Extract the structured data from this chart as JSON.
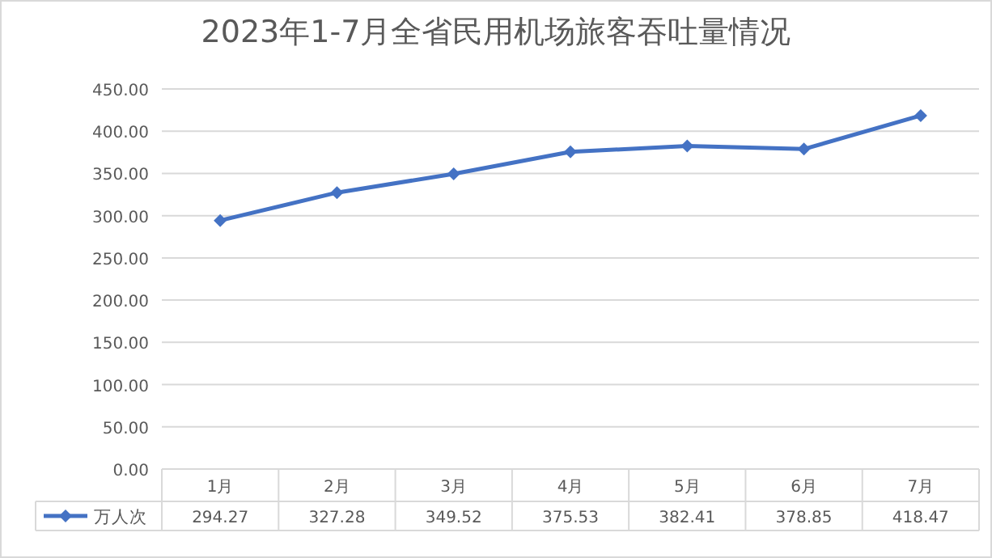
{
  "chart_data": {
    "type": "line",
    "title": "2023年1-7月全省民用机场旅客吞吐量情况",
    "categories": [
      "1月",
      "2月",
      "3月",
      "4月",
      "5月",
      "6月",
      "7月"
    ],
    "series": [
      {
        "name": "万人次",
        "color": "#4472c4",
        "values": [
          294.27,
          327.28,
          349.52,
          375.53,
          382.41,
          378.85,
          418.47
        ]
      }
    ],
    "ylim": [
      0,
      450
    ],
    "yticks": [
      {
        "value": 0,
        "label": "0.00"
      },
      {
        "value": 50,
        "label": "50.00"
      },
      {
        "value": 100,
        "label": "100.00"
      },
      {
        "value": 150,
        "label": "150.00"
      },
      {
        "value": 200,
        "label": "200.00"
      },
      {
        "value": 250,
        "label": "250.00"
      },
      {
        "value": 300,
        "label": "300.00"
      },
      {
        "value": 350,
        "label": "350.00"
      },
      {
        "value": 400,
        "label": "400.00"
      },
      {
        "value": 450,
        "label": "450.00"
      }
    ],
    "grid": "y",
    "legend": "bottom",
    "marker": "diamond",
    "data_labels": true
  }
}
